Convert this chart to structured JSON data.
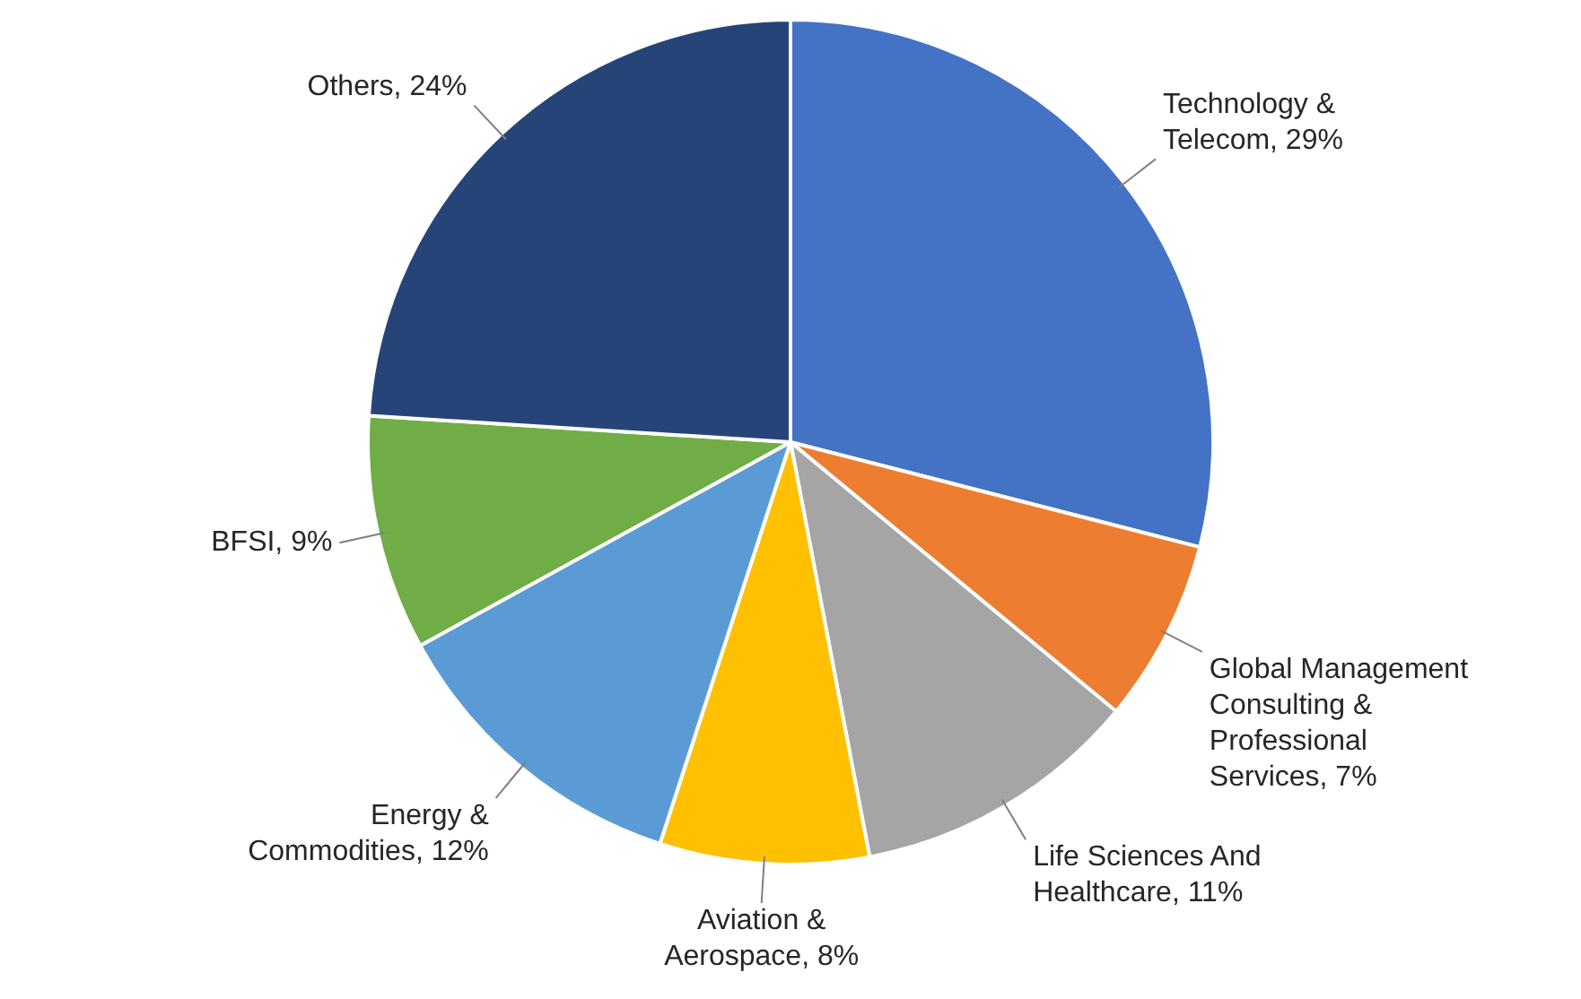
{
  "chart_data": {
    "type": "pie",
    "categories": [
      "Technology & Telecom",
      "Global Management Consulting & Professional Services",
      "Life Sciences And Healthcare",
      "Aviation & Aerospace",
      "Energy & Commodities",
      "BFSI",
      "Others"
    ],
    "values": [
      29,
      7,
      11,
      8,
      12,
      9,
      24
    ],
    "colors": [
      "#4472c4",
      "#ed7d31",
      "#a5a5a5",
      "#ffc000",
      "#5b9bd5",
      "#70ad47",
      "#264478"
    ],
    "value_labels": [
      "29%",
      "7%",
      "11%",
      "8%",
      "12%",
      "9%",
      "24%"
    ],
    "legend": false
  }
}
